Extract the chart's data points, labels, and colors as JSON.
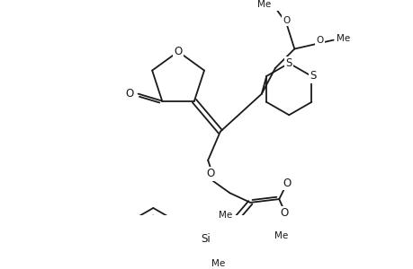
{
  "background": "#ffffff",
  "line_color": "#1a1a1a",
  "lw": 1.3,
  "font_size": 8.5,
  "fig_width": 4.6,
  "fig_height": 3.0,
  "dpi": 100,
  "xlim": [
    0,
    460
  ],
  "ylim": [
    0,
    300
  ]
}
